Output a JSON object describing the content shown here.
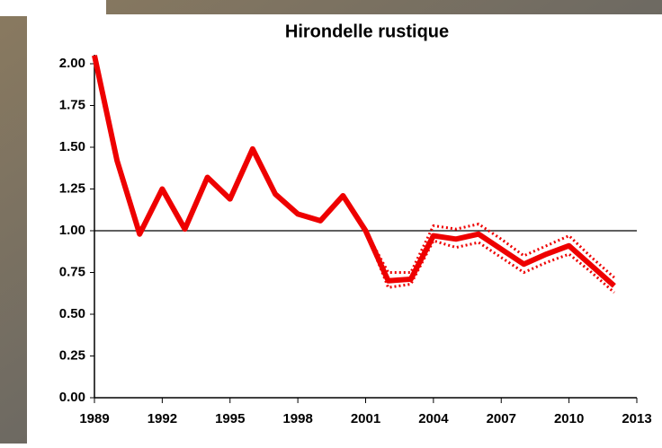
{
  "chart_data": {
    "type": "line",
    "title": "Hirondelle rustique",
    "x": [
      1989,
      1990,
      1991,
      1992,
      1993,
      1994,
      1995,
      1996,
      1997,
      1998,
      1999,
      2000,
      2001,
      2002,
      2003,
      2004,
      2005,
      2006,
      2007,
      2008,
      2009,
      2010,
      2011,
      2012
    ],
    "series": [
      {
        "color": "#ee0000",
        "style": "solid",
        "values": [
          2.05,
          1.42,
          0.98,
          1.25,
          1.01,
          1.32,
          1.19,
          1.49,
          1.22,
          1.1,
          1.06,
          1.21,
          1.0,
          0.7,
          0.71,
          0.97,
          0.95,
          0.98,
          0.89,
          0.8,
          0.86,
          0.91,
          0.79,
          0.67
        ]
      },
      {
        "color": "#ee0000",
        "style": "dotted",
        "values": [
          null,
          null,
          null,
          null,
          null,
          null,
          null,
          null,
          null,
          null,
          null,
          null,
          1.0,
          0.66,
          0.68,
          0.94,
          0.9,
          0.93,
          0.84,
          0.75,
          0.81,
          0.86,
          0.75,
          0.63
        ]
      },
      {
        "color": "#ee0000",
        "style": "dotted",
        "values": [
          null,
          null,
          null,
          null,
          null,
          null,
          null,
          null,
          null,
          null,
          null,
          null,
          1.0,
          0.75,
          0.75,
          1.03,
          1.01,
          1.04,
          0.95,
          0.85,
          0.91,
          0.97,
          0.84,
          0.72
        ]
      }
    ],
    "reference_line": 1,
    "xlim": [
      1989,
      2013
    ],
    "xticks": [
      1989,
      1992,
      1995,
      1998,
      2001,
      2004,
      2007,
      2010,
      2013
    ],
    "ylim": [
      0,
      2
    ],
    "yticks": [
      {
        "value": 0,
        "label": "0.00"
      },
      {
        "value": 0.25,
        "label": "0.25"
      },
      {
        "value": 0.5,
        "label": "0.50"
      },
      {
        "value": 0.75,
        "label": "0.75"
      },
      {
        "value": 1,
        "label": "1.00"
      },
      {
        "value": 1.25,
        "label": "1.25"
      },
      {
        "value": 1.5,
        "label": "1.50"
      },
      {
        "value": 1.75,
        "label": "1.75"
      },
      {
        "value": 2,
        "label": "2.00"
      }
    ]
  }
}
